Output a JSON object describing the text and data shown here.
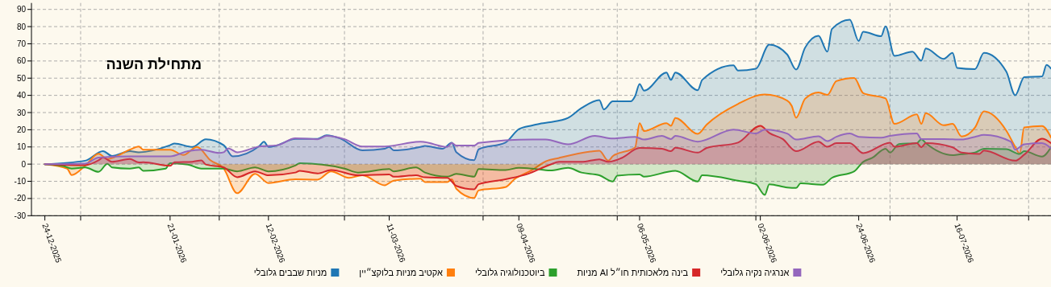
{
  "chart_data": {
    "type": "area",
    "annotations": [
      "מתחילת השנה"
    ],
    "xlim": [
      "2025-12-21",
      "2026-08-06"
    ],
    "xticks": [
      {
        "value": "2025-12-24",
        "label": "24-12-2025"
      },
      {
        "value": "2026-01-01",
        "label": null
      },
      {
        "value": "2026-01-21",
        "label": "21-01-2026"
      },
      {
        "value": "2026-02-01",
        "label": null
      },
      {
        "value": "2026-02-12",
        "label": "12-02-2026"
      },
      {
        "value": "2026-03-01",
        "label": null
      },
      {
        "value": "2026-03-11",
        "label": "11-03-2026"
      },
      {
        "value": "2026-04-01",
        "label": null
      },
      {
        "value": "2026-04-09",
        "label": "09-04-2026"
      },
      {
        "value": "2026-05-01",
        "label": null
      },
      {
        "value": "2026-05-06",
        "label": "06-05-2026"
      },
      {
        "value": "2026-06-01",
        "label": null
      },
      {
        "value": "2026-06-02",
        "label": "02-06-2026"
      },
      {
        "value": "2026-06-24",
        "label": "24-06-2026"
      },
      {
        "value": "2026-07-01",
        "label": null
      },
      {
        "value": "2026-07-16",
        "label": "16-07-2026"
      },
      {
        "value": "2026-08-01",
        "label": null
      }
    ],
    "ylim": [
      -30,
      90
    ],
    "yticks": [
      -30,
      -20,
      -10,
      0,
      10,
      20,
      30,
      40,
      50,
      60,
      70,
      80,
      90
    ],
    "grid": true,
    "legend": "bottom",
    "series": [
      {
        "name": "מניות שבבים גלובלי",
        "color": "#1f77b4",
        "x": [
          "2025-12-24",
          "2026-01-02",
          "2026-01-06",
          "2026-01-08",
          "2026-01-12",
          "2026-01-14",
          "2026-01-21",
          "2026-01-22",
          "2026-01-26",
          "2026-01-29",
          "2026-02-02",
          "2026-02-04",
          "2026-02-10",
          "2026-02-11",
          "2026-02-12",
          "2026-02-14",
          "2026-02-18",
          "2026-02-23",
          "2026-02-25",
          "2026-02-28",
          "2026-03-05",
          "2026-03-10",
          "2026-03-11",
          "2026-03-12",
          "2026-03-18",
          "2026-03-19",
          "2026-03-23",
          "2026-03-25",
          "2026-03-26",
          "2026-03-30",
          "2026-03-31",
          "2026-04-06",
          "2026-04-09",
          "2026-04-12",
          "2026-04-14",
          "2026-04-16",
          "2026-04-20",
          "2026-04-23",
          "2026-04-27",
          "2026-04-28",
          "2026-04-30",
          "2026-05-04",
          "2026-05-05",
          "2026-05-06",
          "2026-05-07",
          "2026-05-12",
          "2026-05-13",
          "2026-05-14",
          "2026-05-19",
          "2026-05-20",
          "2026-05-27",
          "2026-05-28",
          "2026-06-01",
          "2026-06-04",
          "2026-06-08",
          "2026-06-10",
          "2026-06-12",
          "2026-06-15",
          "2026-06-17",
          "2026-06-18",
          "2026-06-22",
          "2026-06-24",
          "2026-06-25",
          "2026-06-29",
          "2026-06-30",
          "2026-07-02",
          "2026-07-06",
          "2026-07-08",
          "2026-07-09",
          "2026-07-13",
          "2026-07-15",
          "2026-07-16",
          "2026-07-20",
          "2026-07-22",
          "2026-07-27",
          "2026-07-29",
          "2026-07-31",
          "2026-08-04",
          "2026-08-05",
          "2026-08-06"
        ],
        "values": [
          0,
          2,
          7.6,
          4.8,
          7.6,
          6.9,
          11,
          12,
          10,
          14.5,
          11,
          4.5,
          10.6,
          13,
          10,
          11,
          14.7,
          14.7,
          16.8,
          15,
          8,
          9,
          10,
          8,
          10,
          10.6,
          9,
          12.5,
          7,
          2.3,
          8.6,
          12.5,
          20.3,
          22.5,
          23.7,
          24.4,
          26.9,
          32.6,
          37.3,
          31.8,
          36.5,
          36.5,
          39.6,
          46.6,
          42.7,
          53.3,
          49,
          53.3,
          43,
          49,
          57.5,
          54.4,
          55.5,
          69.5,
          63.8,
          55,
          67.7,
          74.7,
          65.4,
          78.6,
          84,
          71.6,
          77,
          74.4,
          80.1,
          63,
          65.4,
          60.2,
          67.3,
          61.2,
          64.7,
          56,
          55.3,
          64.7,
          53.8,
          40.1,
          50.6,
          51,
          57.7,
          55.6
        ]
      },
      {
        "name": "אקטיב מניות בלוקצ״יין",
        "color": "#ff7f0e",
        "x": [
          "2025-12-24",
          "2025-12-29",
          "2025-12-30",
          "2026-01-02",
          "2026-01-05",
          "2026-01-07",
          "2026-01-12",
          "2026-01-14",
          "2026-01-15",
          "2026-01-21",
          "2026-01-24",
          "2026-01-27",
          "2026-01-30",
          "2026-02-02",
          "2026-02-05",
          "2026-02-09",
          "2026-02-12",
          "2026-02-18",
          "2026-02-23",
          "2026-02-26",
          "2026-03-02",
          "2026-03-05",
          "2026-03-10",
          "2026-03-12",
          "2026-03-18",
          "2026-03-19",
          "2026-03-24",
          "2026-03-25",
          "2026-03-26",
          "2026-03-30",
          "2026-03-31",
          "2026-04-06",
          "2026-04-08",
          "2026-04-12",
          "2026-04-15",
          "2026-04-18",
          "2026-04-25",
          "2026-04-27",
          "2026-04-29",
          "2026-04-30",
          "2026-05-05",
          "2026-05-06",
          "2026-05-07",
          "2026-05-12",
          "2026-05-13",
          "2026-05-14",
          "2026-05-19",
          "2026-05-21",
          "2026-05-28",
          "2026-06-03",
          "2026-06-08",
          "2026-06-09",
          "2026-06-10",
          "2026-06-12",
          "2026-06-15",
          "2026-06-17",
          "2026-06-19",
          "2026-06-23",
          "2026-06-25",
          "2026-06-30",
          "2026-07-02",
          "2026-07-07",
          "2026-07-08",
          "2026-07-09",
          "2026-07-13",
          "2026-07-15",
          "2026-07-17",
          "2026-07-20",
          "2026-07-22",
          "2026-07-27",
          "2026-07-29",
          "2026-07-30",
          "2026-07-31",
          "2026-08-04",
          "2026-08-06"
        ],
        "values": [
          0,
          -2.6,
          -6.4,
          -1,
          6,
          3,
          8.4,
          10.3,
          8.4,
          8.4,
          5.3,
          10,
          2.3,
          -2.6,
          -16.9,
          -5.6,
          -11,
          -8.8,
          -9,
          -4.2,
          -8,
          -6.5,
          -12.3,
          -9.6,
          -8.5,
          -10.4,
          -10.4,
          -8.8,
          -14.3,
          -19.7,
          -15.3,
          -13.4,
          -8.8,
          -3.4,
          1.6,
          3.6,
          7.3,
          7.8,
          2,
          4.6,
          9.8,
          23.8,
          19.2,
          23.8,
          22.3,
          26.9,
          17.6,
          23,
          35,
          40.5,
          37,
          34,
          27,
          38,
          41.7,
          40.3,
          48.3,
          50.1,
          41.3,
          38.2,
          23.4,
          28.9,
          23.4,
          29.6,
          22.6,
          23.4,
          16.1,
          21.3,
          30.7,
          19.5,
          10.1,
          6.2,
          21.3,
          22.2,
          15.5
        ]
      },
      {
        "name": "ביוטכנולוגיה גלובלי",
        "color": "#2ca02c",
        "x": [
          "2025-12-24",
          "2025-12-28",
          "2025-12-30",
          "2026-01-02",
          "2026-01-05",
          "2026-01-07",
          "2026-01-08",
          "2026-01-12",
          "2026-01-14",
          "2026-01-15",
          "2026-01-20",
          "2026-01-21",
          "2026-01-25",
          "2026-01-28",
          "2026-02-02",
          "2026-02-05",
          "2026-02-09",
          "2026-02-12",
          "2026-02-18",
          "2026-02-19",
          "2026-03-01",
          "2026-03-04",
          "2026-03-11",
          "2026-03-12",
          "2026-03-17",
          "2026-03-19",
          "2026-03-24",
          "2026-03-26",
          "2026-03-30",
          "2026-03-31",
          "2026-04-06",
          "2026-04-09",
          "2026-04-12",
          "2026-04-16",
          "2026-04-20",
          "2026-04-23",
          "2026-04-27",
          "2026-04-30",
          "2026-05-01",
          "2026-05-06",
          "2026-05-07",
          "2026-05-14",
          "2026-05-19",
          "2026-05-20",
          "2026-05-28",
          "2026-06-01",
          "2026-06-03",
          "2026-06-04",
          "2026-06-08",
          "2026-06-10",
          "2026-06-11",
          "2026-06-16",
          "2026-06-18",
          "2026-06-23",
          "2026-06-25",
          "2026-06-27",
          "2026-06-30",
          "2026-07-01",
          "2026-07-03",
          "2026-07-07",
          "2026-07-08",
          "2026-07-09",
          "2026-07-15",
          "2026-07-16",
          "2026-07-20",
          "2026-07-22",
          "2026-07-27",
          "2026-07-30",
          "2026-07-31",
          "2026-08-04",
          "2026-08-06"
        ],
        "values": [
          0,
          -1,
          -2.6,
          -1.9,
          -4.5,
          0.2,
          -1.9,
          -2.6,
          -1.9,
          -3.9,
          -2.6,
          0.5,
          -0.3,
          -2.6,
          -2.6,
          -4.2,
          -1.9,
          -4.2,
          -0.8,
          0.5,
          -2.6,
          -4.9,
          -2.9,
          -4.2,
          -1.9,
          -4.9,
          -7.3,
          -5.7,
          -7.3,
          -2.9,
          -3.4,
          -2.2,
          -2.6,
          -3.7,
          -2.2,
          -4.9,
          -6.5,
          -10.1,
          -6.7,
          -6,
          -7.3,
          -3.9,
          -10.1,
          -6.5,
          -9.6,
          -11.7,
          -17.9,
          -11.7,
          -13.6,
          -13.9,
          -11.2,
          -12,
          -8,
          -4.2,
          1.3,
          3.6,
          9,
          6.7,
          11.7,
          12.2,
          14.5,
          12.2,
          5.2,
          5.5,
          6.7,
          9,
          8.7,
          5.9,
          7.5,
          4.4,
          9.8
        ]
      },
      {
        "name": "בינה מלאכותית חו״ל AI מניות",
        "color": "#d62728",
        "x": [
          "2025-12-24",
          "2026-01-02",
          "2026-01-05",
          "2026-01-06",
          "2026-01-08",
          "2026-01-12",
          "2026-01-14",
          "2026-01-15",
          "2026-01-21",
          "2026-01-22",
          "2026-01-26",
          "2026-01-28",
          "2026-01-29",
          "2026-02-02",
          "2026-02-05",
          "2026-02-09",
          "2026-02-12",
          "2026-02-18",
          "2026-02-19",
          "2026-02-23",
          "2026-02-26",
          "2026-03-04",
          "2026-03-11",
          "2026-03-12",
          "2026-03-17",
          "2026-03-19",
          "2026-03-24",
          "2026-03-26",
          "2026-03-30",
          "2026-03-31",
          "2026-04-06",
          "2026-04-11",
          "2026-04-16",
          "2026-04-18",
          "2026-04-23",
          "2026-04-27",
          "2026-04-29",
          "2026-05-02",
          "2026-05-06",
          "2026-05-11",
          "2026-05-13",
          "2026-05-14",
          "2026-05-19",
          "2026-05-21",
          "2026-05-28",
          "2026-06-02",
          "2026-06-04",
          "2026-06-07",
          "2026-06-10",
          "2026-06-15",
          "2026-06-17",
          "2026-06-19",
          "2026-06-22",
          "2026-06-25",
          "2026-07-01",
          "2026-07-02",
          "2026-07-07",
          "2026-07-08",
          "2026-07-09",
          "2026-07-15",
          "2026-07-17",
          "2026-07-21",
          "2026-07-22",
          "2026-07-29",
          "2026-07-31",
          "2026-08-04",
          "2026-08-06"
        ],
        "values": [
          0,
          -0.6,
          2.2,
          3.8,
          1.4,
          3,
          1,
          1.1,
          -1,
          1.1,
          1.4,
          2.2,
          -0.2,
          -1.9,
          -7.6,
          -4.2,
          -6.5,
          -4.9,
          -3.9,
          -5.4,
          -3.4,
          -6.5,
          -6,
          -7.3,
          -6.5,
          -7.7,
          -8,
          -12.7,
          -14.7,
          -11.7,
          -8.8,
          -5.7,
          -0.3,
          1.3,
          1.3,
          2.8,
          1.3,
          3.6,
          9.4,
          9,
          7.5,
          9.5,
          6.7,
          9.4,
          12.5,
          22.3,
          18.1,
          14.6,
          7.5,
          13,
          10.1,
          12.2,
          12.2,
          6.4,
          12.5,
          10.1,
          12.2,
          9.8,
          12.2,
          9.8,
          6.7,
          5.9,
          7.9,
          2,
          5.5,
          14.8,
          12.2
        ]
      },
      {
        "name": "אנרגיה נקיה גלובלי",
        "color": "#9467bd",
        "x": [
          "2025-12-24",
          "2026-01-02",
          "2026-01-05",
          "2026-01-12",
          "2026-01-21",
          "2026-01-25",
          "2026-01-28",
          "2026-02-01",
          "2026-02-02",
          "2026-02-03",
          "2026-02-05",
          "2026-02-10",
          "2026-02-14",
          "2026-02-18",
          "2026-02-23",
          "2026-02-25",
          "2026-03-01",
          "2026-03-05",
          "2026-03-10",
          "2026-03-18",
          "2026-03-19",
          "2026-03-24",
          "2026-03-25",
          "2026-03-26",
          "2026-03-30",
          "2026-03-31",
          "2026-04-12",
          "2026-04-15",
          "2026-04-20",
          "2026-04-26",
          "2026-04-30",
          "2026-05-05",
          "2026-05-07",
          "2026-05-11",
          "2026-05-13",
          "2026-05-14",
          "2026-05-19",
          "2026-05-27",
          "2026-06-01",
          "2026-06-03",
          "2026-06-08",
          "2026-06-10",
          "2026-06-15",
          "2026-06-17",
          "2026-06-19",
          "2026-06-22",
          "2026-06-24",
          "2026-06-29",
          "2026-07-01",
          "2026-07-07",
          "2026-07-08",
          "2026-07-13",
          "2026-07-17",
          "2026-07-20",
          "2026-07-22",
          "2026-07-28",
          "2026-07-29",
          "2026-07-31",
          "2026-08-04",
          "2026-08-06"
        ],
        "values": [
          0,
          0.3,
          3.8,
          4.5,
          4.5,
          7.6,
          8.4,
          6.5,
          6.9,
          9.2,
          6.9,
          10.3,
          11,
          15,
          14.5,
          16.4,
          14.5,
          10.3,
          10.3,
          13.1,
          12.8,
          10,
          12.3,
          10.8,
          10.8,
          12.3,
          14.3,
          14.3,
          11.5,
          16.4,
          14.9,
          15.8,
          14.3,
          16.4,
          14.6,
          16.4,
          13.1,
          20.1,
          17.8,
          20.1,
          17.8,
          14.3,
          16.2,
          13.4,
          15.9,
          17.8,
          15.9,
          15.4,
          16.4,
          17.8,
          14.6,
          14.6,
          14.3,
          15.9,
          17,
          13.1,
          8.4,
          11.5,
          12.2,
          9.2
        ]
      }
    ]
  }
}
